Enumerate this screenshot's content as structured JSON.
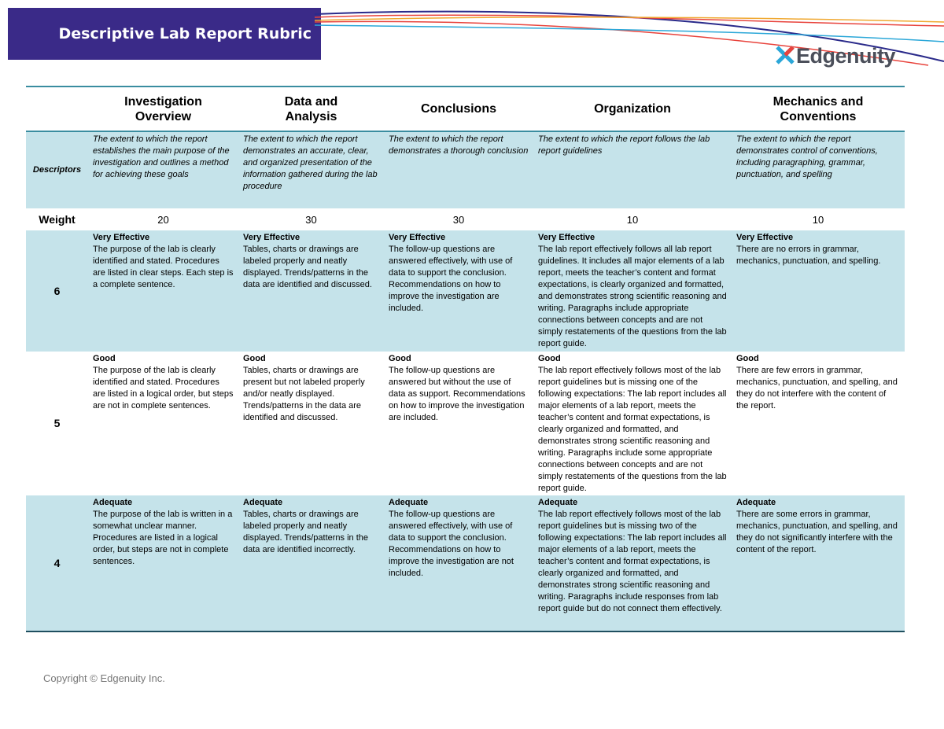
{
  "header": {
    "title": "Descriptive Lab Report Rubric",
    "logo": "Edgenuity"
  },
  "table": {
    "columns": [
      "Investigation Overview",
      "Data and Analysis",
      "Conclusions",
      "Organization",
      "Mechanics and Conventions"
    ],
    "descriptors": {
      "label": "Descriptors",
      "cells": [
        "The extent to which the report establishes the main purpose of the investigation and outlines a method for achieving these goals",
        "The extent to which the report demonstrates an accurate, clear, and organized presentation of the information gathered during the lab procedure",
        "The extent to which the report demonstrates a thorough conclusion",
        "The extent to which the report follows the lab report guidelines",
        "The extent to which the report demonstrates control of conventions, including paragraphing, grammar, punctuation, and spelling"
      ]
    },
    "weight": {
      "label": "Weight",
      "values": [
        20,
        30,
        30,
        10,
        10
      ]
    },
    "rows": [
      {
        "score": 6,
        "cells": [
          {
            "rating": "Very Effective",
            "text": "The purpose of the lab is clearly identified and stated.  Procedures are listed in clear steps. Each step is a complete sentence."
          },
          {
            "rating": "Very Effective",
            "text": "Tables, charts or drawings are labeled properly and neatly displayed. Trends/patterns in the data are identified and discussed."
          },
          {
            "rating": "Very Effective",
            "text": "The follow-up questions are answered effectively, with use of data to support the conclusion. Recommendations on how to improve the investigation are included."
          },
          {
            "rating": "Very Effective",
            "text": "The lab report effectively follows all lab report guidelines. It includes all major elements of a lab report, meets the teacher’s content and format expectations, is clearly organized and formatted, and demonstrates strong scientific reasoning and writing. Paragraphs include appropriate connections between concepts and are not simply restatements of the questions from the lab report guide."
          },
          {
            "rating": "Very Effective",
            "text": "There are no errors in grammar, mechanics, punctuation, and spelling."
          }
        ]
      },
      {
        "score": 5,
        "cells": [
          {
            "rating": "Good",
            "text": "The purpose of the lab is clearly identified and stated. Procedures are listed in a logical order, but steps are not in complete sentences."
          },
          {
            "rating": "Good",
            "text": "Tables, charts or drawings are present but not labeled properly and/or neatly displayed. Trends/patterns in the data are identified and discussed."
          },
          {
            "rating": "Good",
            "text": "The follow-up questions are answered but without the use of data as support. Recommendations on how to improve the investigation are included."
          },
          {
            "rating": "Good",
            "text": "The lab report effectively follows most of the lab report guidelines but is missing one of the following expectations: The lab report includes all major elements of a lab report, meets the teacher’s content and format expectations, is clearly organized and formatted, and demonstrates strong scientific reasoning and writing. Paragraphs include some appropriate connections between concepts and are not simply restatements of the questions from the lab report guide."
          },
          {
            "rating": "Good",
            "text": "There are few errors in grammar, mechanics, punctuation, and spelling, and they do not interfere with the content of the report."
          }
        ]
      },
      {
        "score": 4,
        "cells": [
          {
            "rating": "Adequate",
            "text": "The purpose of the lab  is written in a somewhat unclear manner. Procedures are listed in a logical order, but steps are not in complete sentences."
          },
          {
            "rating": "Adequate",
            "text": "Tables, charts or drawings are labeled properly and neatly displayed. Trends/patterns in the data are identified incorrectly."
          },
          {
            "rating": "Adequate",
            "text": "The follow-up questions are answered effectively, with use of data to support the conclusion. Recommendations on how to improve the investigation are not included."
          },
          {
            "rating": "Adequate",
            "text": "The lab report effectively follows most of the lab report guidelines but is missing two of the following expectations: The lab report includes all major elements of a lab report, meets the teacher’s content and format expectations, is clearly organized and formatted, and demonstrates strong scientific reasoning and writing. Paragraphs include responses from lab report guide but do not connect them effectively."
          },
          {
            "rating": "Adequate",
            "text": "There are some errors in grammar, mechanics, punctuation, and spelling, and they do not significantly interfere with the content of the report."
          }
        ]
      }
    ]
  },
  "footer": {
    "copyright": "Copyright © Edgenuity Inc."
  }
}
